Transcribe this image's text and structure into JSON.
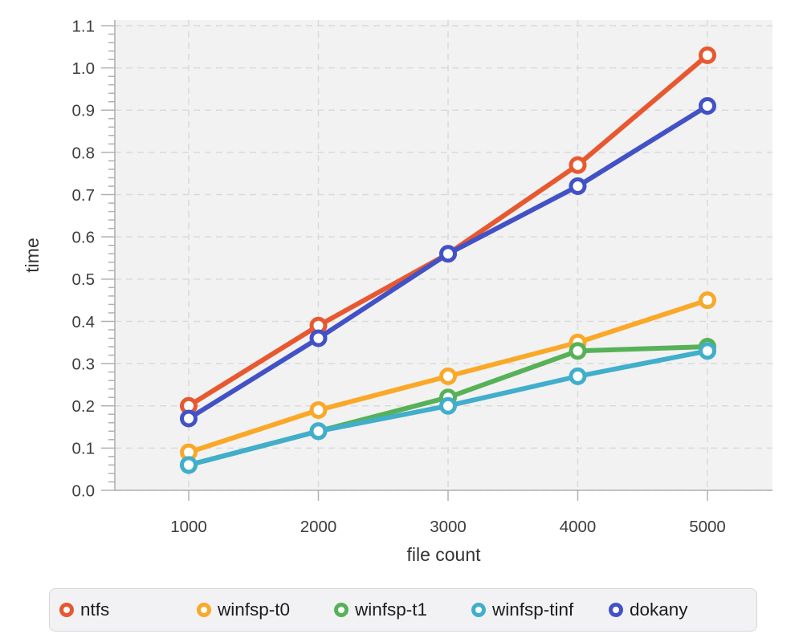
{
  "chart_data": {
    "type": "line",
    "xlabel": "file count",
    "ylabel": "time",
    "x": [
      1000,
      2000,
      3000,
      4000,
      5000
    ],
    "x_tick_labels": [
      "1000",
      "2000",
      "3000",
      "4000",
      "5000"
    ],
    "y_tick_labels": [
      "0.0",
      "0.1",
      "0.2",
      "0.3",
      "0.4",
      "0.5",
      "0.6",
      "0.7",
      "0.8",
      "0.9",
      "1.0",
      "1.1"
    ],
    "ylim": [
      0,
      1.1
    ],
    "y_major_step": 0.1,
    "y_minor_step": 0.02,
    "grid": {
      "show": true,
      "style": "dashed",
      "color": "#dadada"
    },
    "plot_background": "#f2f2f2",
    "axis_color": "#b0b0b0",
    "tick_label_color": "#3d3d3d",
    "axis_label_color": "#333333",
    "legend_position": "bottom",
    "marker": {
      "shape": "circle-open",
      "fill": "#ffffff"
    },
    "series": [
      {
        "name": "ntfs",
        "color": "#e85830",
        "values": [
          0.2,
          0.39,
          0.56,
          0.77,
          1.03
        ]
      },
      {
        "name": "winfsp-t0",
        "color": "#faa828",
        "values": [
          0.09,
          0.19,
          0.27,
          0.35,
          0.45
        ]
      },
      {
        "name": "winfsp-t1",
        "color": "#57b157",
        "values": [
          0.06,
          0.14,
          0.22,
          0.33,
          0.34
        ]
      },
      {
        "name": "winfsp-tinf",
        "color": "#41aecb",
        "values": [
          0.06,
          0.14,
          0.2,
          0.27,
          0.33
        ]
      },
      {
        "name": "dokany",
        "color": "#4252c6",
        "values": [
          0.17,
          0.36,
          0.56,
          0.72,
          0.91
        ]
      }
    ]
  }
}
